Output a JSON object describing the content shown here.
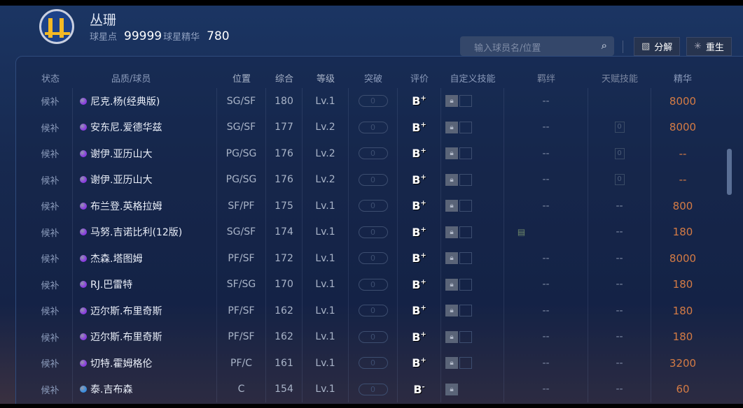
{
  "header": {
    "team_logo": "golden-state-warriors-logo",
    "name": "丛珊",
    "points_label": "球星点",
    "points": "99999",
    "essence_label": "球星精华",
    "essence": "780"
  },
  "toolbar": {
    "search_placeholder": "输入球员名/位置",
    "decompose": "分解",
    "rebirth": "重生"
  },
  "columns": [
    "状态",
    "品质/球员",
    "位置",
    "综合",
    "等级",
    "突破",
    "评价",
    "自定义技能",
    "羁绊",
    "天赋技能",
    "精华"
  ],
  "colors": {
    "purple": "#8a3ce0",
    "blue": "#3a8ee0",
    "essence": "#d47b45"
  },
  "rows": [
    {
      "status": "候补",
      "quality": "purple",
      "name": "尼克.杨(经典版)",
      "pos": "SG/SF",
      "overall": "180",
      "level": "Lv.1",
      "break": "0",
      "rating": "B",
      "rating_mod": "+",
      "slot": true,
      "bond": "--",
      "talent": "",
      "essence": "8000"
    },
    {
      "status": "候补",
      "quality": "purple",
      "name": "安东尼.爱德华兹",
      "pos": "SG/SF",
      "overall": "177",
      "level": "Lv.2",
      "break": "0",
      "rating": "B",
      "rating_mod": "+",
      "slot": true,
      "bond": "--",
      "talent": "0",
      "essence": "8000"
    },
    {
      "status": "候补",
      "quality": "purple",
      "name": "谢伊.亚历山大",
      "pos": "PG/SG",
      "overall": "176",
      "level": "Lv.2",
      "break": "0",
      "rating": "B",
      "rating_mod": "+",
      "slot": true,
      "bond": "--",
      "talent": "0",
      "essence": "--"
    },
    {
      "status": "候补",
      "quality": "purple",
      "name": "谢伊.亚历山大",
      "pos": "PG/SG",
      "overall": "176",
      "level": "Lv.2",
      "break": "0",
      "rating": "B",
      "rating_mod": "+",
      "slot": true,
      "bond": "--",
      "talent": "0",
      "essence": "--"
    },
    {
      "status": "候补",
      "quality": "purple",
      "name": "布兰登.英格拉姆",
      "pos": "SF/PF",
      "overall": "175",
      "level": "Lv.1",
      "break": "0",
      "rating": "B",
      "rating_mod": "+",
      "slot": true,
      "bond": "--",
      "talent": "--",
      "essence": "800"
    },
    {
      "status": "候补",
      "quality": "purple",
      "name": "马努.吉诺比利(12版)",
      "pos": "SG/SF",
      "overall": "174",
      "level": "Lv.1",
      "break": "0",
      "rating": "B",
      "rating_mod": "+",
      "slot": true,
      "bond": "icon",
      "talent": "--",
      "essence": "180"
    },
    {
      "status": "候补",
      "quality": "purple",
      "name": "杰森.塔图姆",
      "pos": "PF/SF",
      "overall": "172",
      "level": "Lv.1",
      "break": "0",
      "rating": "B",
      "rating_mod": "+",
      "slot": true,
      "bond": "--",
      "talent": "--",
      "essence": "8000"
    },
    {
      "status": "候补",
      "quality": "purple",
      "name": "RJ.巴雷特",
      "pos": "SF/SG",
      "overall": "170",
      "level": "Lv.1",
      "break": "0",
      "rating": "B",
      "rating_mod": "+",
      "slot": true,
      "bond": "--",
      "talent": "--",
      "essence": "180"
    },
    {
      "status": "候补",
      "quality": "purple",
      "name": "迈尔斯.布里奇斯",
      "pos": "PF/SF",
      "overall": "162",
      "level": "Lv.1",
      "break": "0",
      "rating": "B",
      "rating_mod": "+",
      "slot": true,
      "bond": "--",
      "talent": "--",
      "essence": "180"
    },
    {
      "status": "候补",
      "quality": "purple",
      "name": "迈尔斯.布里奇斯",
      "pos": "PF/SF",
      "overall": "162",
      "level": "Lv.1",
      "break": "0",
      "rating": "B",
      "rating_mod": "+",
      "slot": true,
      "bond": "--",
      "talent": "--",
      "essence": "180"
    },
    {
      "status": "候补",
      "quality": "purple",
      "name": "切特.霍姆格伦",
      "pos": "PF/C",
      "overall": "161",
      "level": "Lv.1",
      "break": "0",
      "rating": "B",
      "rating_mod": "+",
      "slot": true,
      "bond": "--",
      "talent": "--",
      "essence": "3200"
    },
    {
      "status": "候补",
      "quality": "blue",
      "name": "泰.吉布森",
      "pos": "C",
      "overall": "154",
      "level": "Lv.1",
      "break": "0",
      "rating": "B",
      "rating_mod": "-",
      "slot": false,
      "bond": "--",
      "talent": "--",
      "essence": "60"
    }
  ]
}
